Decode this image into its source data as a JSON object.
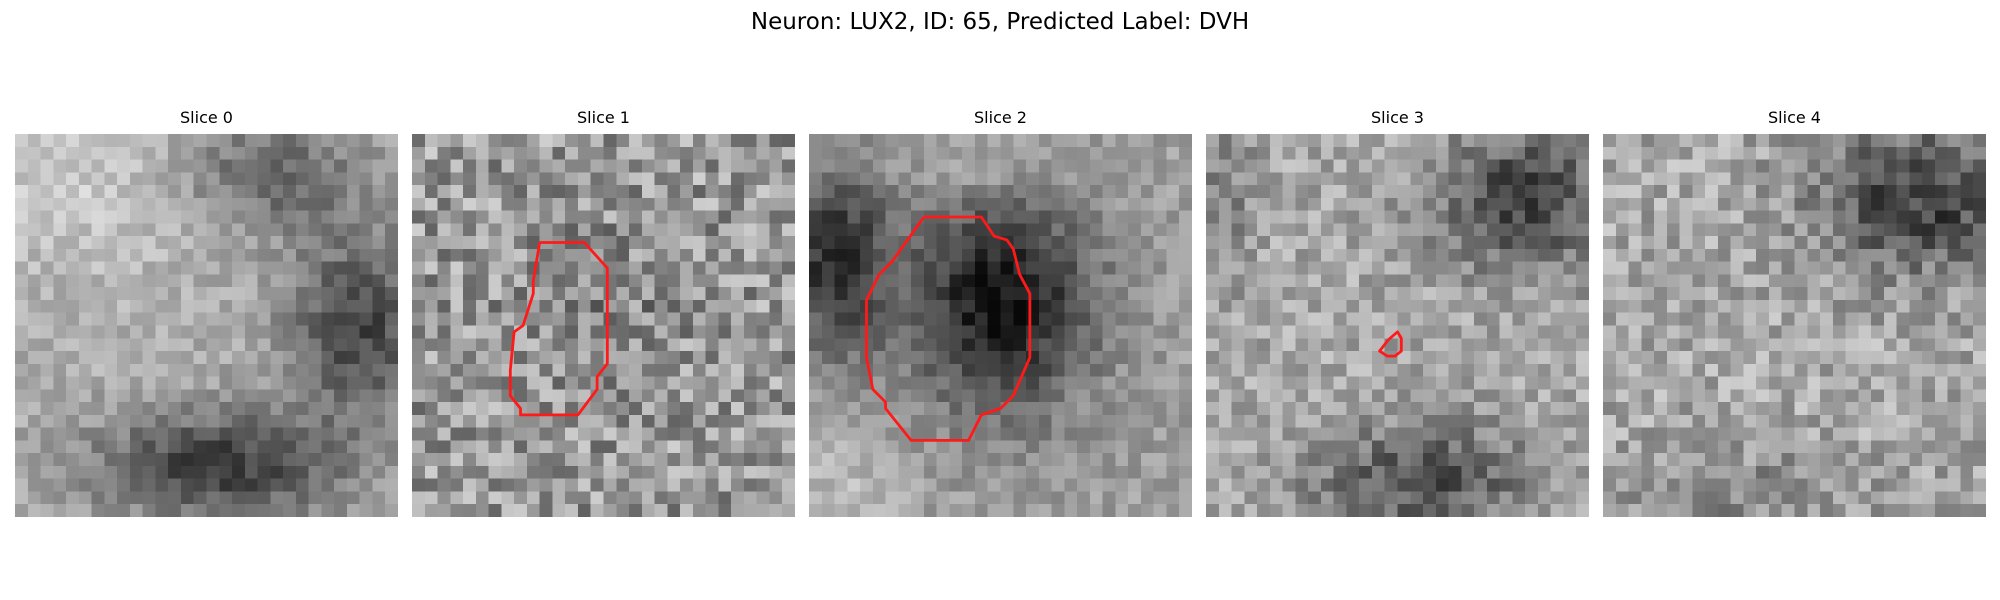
{
  "figure": {
    "title": "Neuron: LUX2, ID: 65, Predicted Label: DVH"
  },
  "panels": [
    {
      "title": "Slice 0"
    },
    {
      "title": "Slice 1"
    },
    {
      "title": "Slice 2"
    },
    {
      "title": "Slice 3"
    },
    {
      "title": "Slice 4"
    }
  ],
  "colors": {
    "contour": "#ff1a1a",
    "colormap": "gray"
  }
}
